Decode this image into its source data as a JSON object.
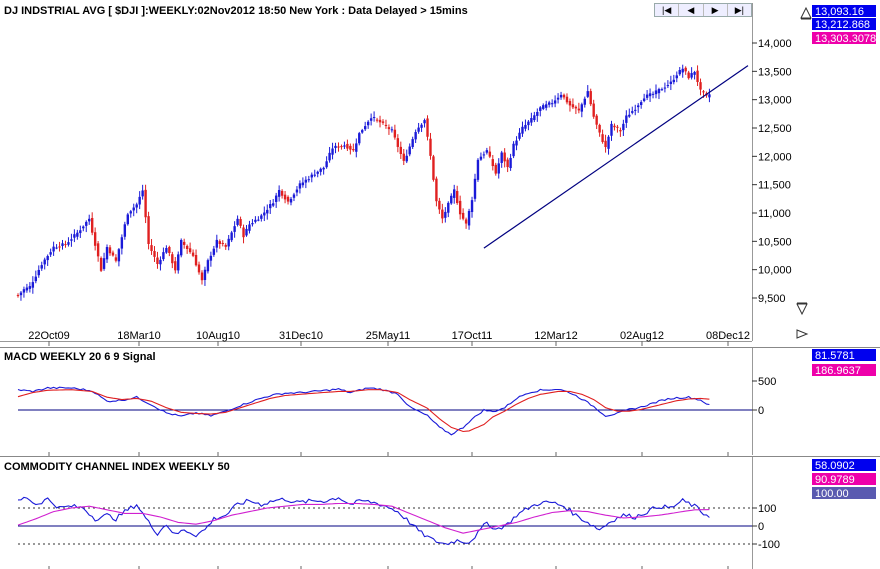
{
  "colors": {
    "up": "#1a1ad8",
    "down": "#e02020",
    "macd_line": "#1a1ad8",
    "macd_signal": "#e02020",
    "cci_line": "#1a1ad8",
    "cci_signal": "#d020d0",
    "trendline": "#000080",
    "last_blue": "#0000ee",
    "last_magenta": "#ee00aa",
    "last_slate": "#5a5ab0"
  },
  "nav": {
    "first_icon": "skip-back-icon",
    "first": "|◀",
    "prev_icon": "arrow-left-icon",
    "prev": "◀",
    "next_icon": "arrow-right-icon",
    "next": "▶",
    "last_icon": "skip-forward-icon",
    "last": "▶|"
  },
  "chart_data": [
    {
      "type": "candlestick",
      "title": "DJ INDSTRIAL AVG [ $DJI ]:WEEKLY:02Nov2012 18:50 New York : Data Delayed > 15mins",
      "x_tick_labels": [
        "22Oct09",
        "18Mar10",
        "10Aug10",
        "31Dec10",
        "25May11",
        "17Oct11",
        "12Mar12",
        "02Aug12",
        "08Dec12"
      ],
      "y_ticks": [
        "9,500",
        "10,000",
        "10,500",
        "11,000",
        "11,500",
        "12,000",
        "12,500",
        "13,000",
        "13,500",
        "14,000"
      ],
      "ylim": [
        9150,
        14250
      ],
      "last_values": [
        "13,093.16",
        "13,212.868",
        "13,303.3078"
      ],
      "anchors": [
        [
          0,
          9550
        ],
        [
          2,
          9650
        ],
        [
          4,
          9700
        ],
        [
          8,
          10100
        ],
        [
          12,
          10400
        ],
        [
          16,
          10450
        ],
        [
          20,
          10650
        ],
        [
          24,
          10900
        ],
        [
          28,
          10000
        ],
        [
          30,
          10400
        ],
        [
          33,
          10150
        ],
        [
          37,
          11000
        ],
        [
          40,
          11150
        ],
        [
          42,
          11400
        ],
        [
          44,
          10450
        ],
        [
          47,
          10100
        ],
        [
          50,
          10400
        ],
        [
          53,
          10000
        ],
        [
          55,
          10500
        ],
        [
          59,
          10250
        ],
        [
          62,
          9800
        ],
        [
          64,
          10150
        ],
        [
          67,
          10500
        ],
        [
          70,
          10400
        ],
        [
          74,
          10900
        ],
        [
          76,
          10600
        ],
        [
          78,
          10800
        ],
        [
          82,
          10950
        ],
        [
          86,
          11200
        ],
        [
          88,
          11400
        ],
        [
          91,
          11200
        ],
        [
          95,
          11500
        ],
        [
          100,
          11700
        ],
        [
          103,
          11800
        ],
        [
          106,
          12150
        ],
        [
          110,
          12200
        ],
        [
          113,
          12100
        ],
        [
          115,
          12400
        ],
        [
          119,
          12700
        ],
        [
          122,
          12600
        ],
        [
          126,
          12450
        ],
        [
          130,
          11900
        ],
        [
          134,
          12450
        ],
        [
          137,
          12650
        ],
        [
          139,
          12000
        ],
        [
          141,
          11200
        ],
        [
          143,
          10900
        ],
        [
          145,
          11150
        ],
        [
          147,
          11400
        ],
        [
          149,
          11000
        ],
        [
          151,
          10800
        ],
        [
          153,
          11250
        ],
        [
          155,
          11950
        ],
        [
          158,
          12100
        ],
        [
          161,
          11700
        ],
        [
          163,
          12050
        ],
        [
          165,
          11800
        ],
        [
          167,
          12200
        ],
        [
          170,
          12500
        ],
        [
          173,
          12650
        ],
        [
          176,
          12850
        ],
        [
          180,
          12950
        ],
        [
          183,
          13100
        ],
        [
          186,
          12900
        ],
        [
          189,
          12800
        ],
        [
          192,
          13150
        ],
        [
          194,
          12700
        ],
        [
          196,
          12400
        ],
        [
          198,
          12150
        ],
        [
          200,
          12550
        ],
        [
          203,
          12450
        ],
        [
          205,
          12700
        ],
        [
          208,
          12850
        ],
        [
          211,
          13050
        ],
        [
          214,
          13100
        ],
        [
          217,
          13200
        ],
        [
          220,
          13300
        ],
        [
          222,
          13450
        ],
        [
          224,
          13550
        ],
        [
          226,
          13400
        ],
        [
          228,
          13500
        ],
        [
          230,
          13150
        ],
        [
          232,
          13050
        ],
        [
          233,
          13093
        ]
      ],
      "trendline": [
        [
          157,
          10380
        ],
        [
          233,
          13150
        ],
        [
          246,
          13600
        ]
      ]
    },
    {
      "type": "line",
      "title": "MACD WEEKLY 20 6 9 Signal",
      "y_ticks": [
        "500",
        "0"
      ],
      "ylim": [
        -700,
        620
      ],
      "last_values": [
        "81.5781",
        "186.9637"
      ],
      "macd_anchors": [
        [
          0,
          350
        ],
        [
          5,
          320
        ],
        [
          10,
          380
        ],
        [
          18,
          380
        ],
        [
          25,
          330
        ],
        [
          30,
          150
        ],
        [
          35,
          170
        ],
        [
          40,
          220
        ],
        [
          45,
          90
        ],
        [
          50,
          -50
        ],
        [
          55,
          -110
        ],
        [
          60,
          -50
        ],
        [
          65,
          -100
        ],
        [
          70,
          -20
        ],
        [
          75,
          80
        ],
        [
          80,
          170
        ],
        [
          85,
          250
        ],
        [
          90,
          290
        ],
        [
          95,
          300
        ],
        [
          100,
          320
        ],
        [
          108,
          360
        ],
        [
          112,
          300
        ],
        [
          118,
          380
        ],
        [
          122,
          360
        ],
        [
          128,
          280
        ],
        [
          132,
          50
        ],
        [
          138,
          -100
        ],
        [
          142,
          -300
        ],
        [
          146,
          -420
        ],
        [
          150,
          -300
        ],
        [
          152,
          -200
        ],
        [
          157,
          0
        ],
        [
          160,
          -30
        ],
        [
          164,
          40
        ],
        [
          168,
          200
        ],
        [
          172,
          300
        ],
        [
          176,
          340
        ],
        [
          182,
          360
        ],
        [
          186,
          300
        ],
        [
          190,
          190
        ],
        [
          194,
          60
        ],
        [
          198,
          -100
        ],
        [
          202,
          -60
        ],
        [
          206,
          10
        ],
        [
          210,
          50
        ],
        [
          214,
          120
        ],
        [
          218,
          180
        ],
        [
          222,
          210
        ],
        [
          226,
          220
        ],
        [
          230,
          170
        ],
        [
          233,
          82
        ]
      ],
      "signal_anchors": [
        [
          0,
          230
        ],
        [
          5,
          300
        ],
        [
          10,
          340
        ],
        [
          18,
          350
        ],
        [
          25,
          320
        ],
        [
          30,
          220
        ],
        [
          35,
          180
        ],
        [
          40,
          200
        ],
        [
          45,
          150
        ],
        [
          50,
          40
        ],
        [
          55,
          -40
        ],
        [
          60,
          -60
        ],
        [
          65,
          -70
        ],
        [
          70,
          -40
        ],
        [
          75,
          40
        ],
        [
          80,
          120
        ],
        [
          85,
          200
        ],
        [
          90,
          250
        ],
        [
          95,
          270
        ],
        [
          100,
          290
        ],
        [
          108,
          320
        ],
        [
          112,
          320
        ],
        [
          118,
          350
        ],
        [
          122,
          350
        ],
        [
          128,
          300
        ],
        [
          132,
          180
        ],
        [
          138,
          30
        ],
        [
          142,
          -150
        ],
        [
          146,
          -300
        ],
        [
          150,
          -370
        ],
        [
          152,
          -360
        ],
        [
          157,
          -250
        ],
        [
          160,
          -120
        ],
        [
          164,
          -20
        ],
        [
          168,
          100
        ],
        [
          172,
          200
        ],
        [
          176,
          270
        ],
        [
          182,
          320
        ],
        [
          186,
          320
        ],
        [
          190,
          270
        ],
        [
          194,
          180
        ],
        [
          198,
          40
        ],
        [
          202,
          -20
        ],
        [
          206,
          -20
        ],
        [
          210,
          10
        ],
        [
          214,
          60
        ],
        [
          218,
          110
        ],
        [
          222,
          160
        ],
        [
          226,
          190
        ],
        [
          230,
          200
        ],
        [
          233,
          187
        ]
      ]
    },
    {
      "type": "line",
      "title": "COMMODITY CHANNEL INDEX WEEKLY 50",
      "y_ticks": [
        "100",
        "0",
        "-100"
      ],
      "ylim": [
        -150,
        230
      ],
      "last_values": [
        "58.0902",
        "90.9789",
        "100.00"
      ],
      "cci_anchors": [
        [
          0,
          140
        ],
        [
          3,
          160
        ],
        [
          6,
          120
        ],
        [
          10,
          150
        ],
        [
          14,
          100
        ],
        [
          18,
          110
        ],
        [
          22,
          100
        ],
        [
          26,
          40
        ],
        [
          30,
          60
        ],
        [
          33,
          40
        ],
        [
          36,
          80
        ],
        [
          40,
          120
        ],
        [
          44,
          20
        ],
        [
          47,
          -40
        ],
        [
          50,
          10
        ],
        [
          53,
          -50
        ],
        [
          56,
          -20
        ],
        [
          60,
          -50
        ],
        [
          63,
          -20
        ],
        [
          66,
          40
        ],
        [
          70,
          60
        ],
        [
          74,
          120
        ],
        [
          78,
          140
        ],
        [
          82,
          120
        ],
        [
          86,
          140
        ],
        [
          90,
          150
        ],
        [
          94,
          130
        ],
        [
          100,
          140
        ],
        [
          104,
          140
        ],
        [
          108,
          160
        ],
        [
          112,
          120
        ],
        [
          116,
          140
        ],
        [
          120,
          130
        ],
        [
          124,
          110
        ],
        [
          128,
          80
        ],
        [
          132,
          20
        ],
        [
          136,
          -40
        ],
        [
          140,
          -80
        ],
        [
          144,
          -100
        ],
        [
          148,
          -80
        ],
        [
          152,
          -90
        ],
        [
          155,
          -40
        ],
        [
          158,
          20
        ],
        [
          161,
          -20
        ],
        [
          165,
          10
        ],
        [
          168,
          60
        ],
        [
          172,
          100
        ],
        [
          176,
          130
        ],
        [
          180,
          130
        ],
        [
          184,
          110
        ],
        [
          188,
          60
        ],
        [
          192,
          20
        ],
        [
          196,
          -20
        ],
        [
          200,
          30
        ],
        [
          204,
          60
        ],
        [
          208,
          50
        ],
        [
          212,
          80
        ],
        [
          216,
          110
        ],
        [
          220,
          100
        ],
        [
          224,
          140
        ],
        [
          228,
          110
        ],
        [
          231,
          70
        ],
        [
          233,
          58
        ]
      ],
      "signal_anchors": [
        [
          0,
          5
        ],
        [
          6,
          40
        ],
        [
          12,
          80
        ],
        [
          18,
          100
        ],
        [
          24,
          110
        ],
        [
          30,
          90
        ],
        [
          36,
          70
        ],
        [
          42,
          70
        ],
        [
          48,
          50
        ],
        [
          54,
          20
        ],
        [
          60,
          10
        ],
        [
          66,
          30
        ],
        [
          72,
          60
        ],
        [
          78,
          80
        ],
        [
          84,
          100
        ],
        [
          90,
          110
        ],
        [
          96,
          120
        ],
        [
          102,
          120
        ],
        [
          108,
          125
        ],
        [
          114,
          125
        ],
        [
          120,
          120
        ],
        [
          126,
          110
        ],
        [
          132,
          70
        ],
        [
          138,
          30
        ],
        [
          144,
          -10
        ],
        [
          150,
          -40
        ],
        [
          156,
          -20
        ],
        [
          162,
          0
        ],
        [
          168,
          20
        ],
        [
          174,
          50
        ],
        [
          180,
          75
        ],
        [
          186,
          85
        ],
        [
          192,
          80
        ],
        [
          198,
          60
        ],
        [
          204,
          45
        ],
        [
          210,
          50
        ],
        [
          216,
          60
        ],
        [
          222,
          75
        ],
        [
          228,
          90
        ],
        [
          233,
          91
        ]
      ]
    }
  ]
}
